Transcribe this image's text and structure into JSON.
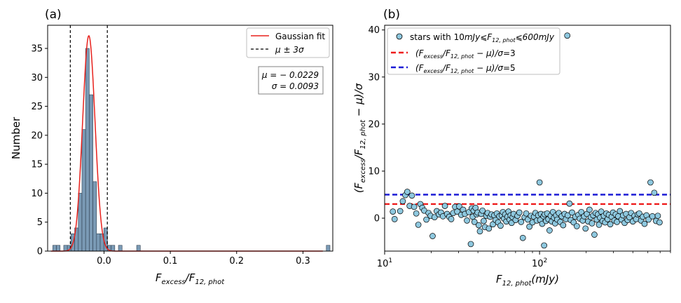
{
  "panel_a": {
    "letter": "(a)",
    "legend": {
      "fit": "Gaussian fit",
      "sigma_lines": "μ ± 3σ"
    },
    "stats": {
      "mu": "μ = − 0.0229",
      "sigma": "σ = 0.0093"
    },
    "colors": {
      "bars": "#7a9ab5",
      "fit": "#e8211c",
      "lines": "#000000"
    }
  },
  "panel_b": {
    "letter": "(b)",
    "legend": {
      "stars_prefix": "stars with 10",
      "stars_unit": "mJy",
      "stars_mid": "⩽F",
      "stars_sub": "12, phot",
      "stars_end": "⩽600",
      "line3": "=3",
      "line5": "=5"
    },
    "colors": {
      "points": "#8ec8df",
      "line3": "#ee1c1c",
      "line5": "#1b1bd6"
    }
  },
  "chart_data": [
    {
      "type": "bar",
      "title": "",
      "xlabel": "F_excess/F_12,phot",
      "ylabel": "Number",
      "xlim": [
        -0.085,
        0.345
      ],
      "ylim": [
        0,
        39
      ],
      "xticks": [
        "0.0",
        "0.1",
        "0.2",
        "0.3"
      ],
      "yticks": [
        "0",
        "5",
        "10",
        "15",
        "20",
        "25",
        "30",
        "35"
      ],
      "bin_width": 0.0055,
      "bins": [
        [
          -0.0745,
          1
        ],
        [
          -0.069,
          1
        ],
        [
          -0.058,
          1
        ],
        [
          -0.0525,
          1
        ],
        [
          -0.047,
          3
        ],
        [
          -0.0415,
          4
        ],
        [
          -0.036,
          10
        ],
        [
          -0.0305,
          21
        ],
        [
          -0.025,
          35
        ],
        [
          -0.0195,
          27
        ],
        [
          -0.014,
          12
        ],
        [
          -0.0085,
          3
        ],
        [
          -0.003,
          3
        ],
        [
          0.0025,
          4
        ],
        [
          0.008,
          1
        ],
        [
          0.0135,
          1
        ],
        [
          0.0245,
          1
        ],
        [
          0.052,
          1
        ],
        [
          0.338,
          1
        ]
      ],
      "gaussian_fit": {
        "mu": -0.0229,
        "sigma": 0.0093,
        "amplitude": 37.2
      },
      "vlines": [
        -0.0508,
        0.005
      ],
      "legend": [
        "Gaussian fit",
        "μ ± 3σ"
      ],
      "grid": false
    },
    {
      "type": "scatter",
      "title": "",
      "xlabel": "F_12,phot(mJy)",
      "ylabel": "(F_excess/F_12,phot − μ)/σ",
      "xscale": "log",
      "xlim": [
        10,
        700
      ],
      "ylim": [
        -7,
        41
      ],
      "xticks": [
        "10^1",
        "10^2"
      ],
      "yticks": [
        "0",
        "10",
        "20",
        "30",
        "40"
      ],
      "hlines": [
        3,
        5
      ],
      "legend": [
        "stars with 10mJy⩽F12,phot⩽600mJy",
        "(Fexcess/F12,phot − μ)/σ=3",
        "(Fexcess/F12,phot − μ)/σ=5"
      ],
      "grid": false,
      "points": [
        [
          11.3,
          1.4
        ],
        [
          11.6,
          -0.2
        ],
        [
          12.6,
          1.5
        ],
        [
          13.1,
          3.6
        ],
        [
          13.6,
          4.9
        ],
        [
          14.0,
          5.6
        ],
        [
          14.5,
          2.6
        ],
        [
          15.0,
          4.8
        ],
        [
          15.5,
          2.4
        ],
        [
          16.0,
          1.0
        ],
        [
          16.5,
          -1.4
        ],
        [
          17.0,
          3.0
        ],
        [
          17.5,
          2.2
        ],
        [
          18.0,
          1.6
        ],
        [
          18.6,
          -0.3
        ],
        [
          19.2,
          1.1
        ],
        [
          19.8,
          0.5
        ],
        [
          20.4,
          -3.8
        ],
        [
          21.0,
          0.2
        ],
        [
          21.7,
          1.5
        ],
        [
          22.4,
          0.8
        ],
        [
          23.1,
          1.2
        ],
        [
          23.8,
          0.4
        ],
        [
          24.5,
          2.6
        ],
        [
          25.3,
          0.9
        ],
        [
          26.1,
          0.3
        ],
        [
          26.9,
          -0.2
        ],
        [
          27.7,
          1.1
        ],
        [
          28.5,
          2.4
        ],
        [
          29.4,
          1.4
        ],
        [
          30.3,
          2.5
        ],
        [
          31.2,
          0.7
        ],
        [
          32.1,
          1.8
        ],
        [
          33.0,
          0.9
        ],
        [
          34.0,
          -0.5
        ],
        [
          35.0,
          1.3
        ],
        [
          36.0,
          -5.5
        ],
        [
          36.5,
          2.1
        ],
        [
          37.0,
          0.3
        ],
        [
          37.5,
          1.6
        ],
        [
          38.0,
          -0.8
        ],
        [
          38.6,
          2.2
        ],
        [
          39.2,
          0.8
        ],
        [
          39.8,
          1.2
        ],
        [
          40.5,
          -1.5
        ],
        [
          41.2,
          -2.8
        ],
        [
          42.0,
          0.9
        ],
        [
          42.8,
          1.6
        ],
        [
          43.6,
          -0.6
        ],
        [
          44.4,
          -1.9
        ],
        [
          45.3,
          0.5
        ],
        [
          46.2,
          1.1
        ],
        [
          47.1,
          -2.2
        ],
        [
          48.0,
          0.3
        ],
        [
          49.0,
          0.8
        ],
        [
          50.0,
          -1.3
        ],
        [
          51.0,
          0.6
        ],
        [
          52.0,
          -0.4
        ],
        [
          53.0,
          1.0
        ],
        [
          54.0,
          -0.9
        ],
        [
          55.0,
          0.4
        ],
        [
          56.0,
          -1.6
        ],
        [
          57.0,
          0.6
        ],
        [
          58.0,
          1.3
        ],
        [
          59.0,
          -0.1
        ],
        [
          60.0,
          0.8
        ],
        [
          61.0,
          -0.7
        ],
        [
          62.0,
          0.3
        ],
        [
          63.0,
          1.4
        ],
        [
          64.0,
          -0.3
        ],
        [
          65.0,
          0.6
        ],
        [
          66.0,
          -1.0
        ],
        [
          67.0,
          0.2
        ],
        [
          68.0,
          0.9
        ],
        [
          70.0,
          -0.4
        ],
        [
          72.0,
          0.5
        ],
        [
          74.0,
          1.2
        ],
        [
          76.0,
          -0.8
        ],
        [
          78.0,
          -4.2
        ],
        [
          80.0,
          0.2
        ],
        [
          82.0,
          1.0
        ],
        [
          84.0,
          -0.3
        ],
        [
          86.0,
          -1.8
        ],
        [
          88.0,
          0.5
        ],
        [
          90.0,
          -0.9
        ],
        [
          92.0,
          0.3
        ],
        [
          94.0,
          1.1
        ],
        [
          96.0,
          -0.5
        ],
        [
          98.0,
          0.6
        ],
        [
          100.0,
          7.6
        ],
        [
          101.0,
          -0.4
        ],
        [
          102.0,
          0.9
        ],
        [
          104.0,
          -1.2
        ],
        [
          106.0,
          0.4
        ],
        [
          107.0,
          -5.8
        ],
        [
          108.0,
          0.8
        ],
        [
          110.0,
          -0.6
        ],
        [
          112.0,
          1.0
        ],
        [
          114.0,
          -0.2
        ],
        [
          116.0,
          -2.6
        ],
        [
          118.0,
          0.5
        ],
        [
          120.0,
          -0.7
        ],
        [
          122.0,
          1.3
        ],
        [
          124.0,
          0.1
        ],
        [
          126.0,
          -1.1
        ],
        [
          128.0,
          0.6
        ],
        [
          130.0,
          -0.3
        ],
        [
          133.0,
          1.1
        ],
        [
          136.0,
          -0.8
        ],
        [
          139.0,
          0.4
        ],
        [
          142.0,
          -1.5
        ],
        [
          145.0,
          0.9
        ],
        [
          148.0,
          -0.2
        ],
        [
          151.0,
          38.8
        ],
        [
          152.0,
          0.6
        ],
        [
          156.0,
          3.1
        ],
        [
          159.0,
          -0.4
        ],
        [
          162.0,
          1.2
        ],
        [
          166.0,
          -0.9
        ],
        [
          170.0,
          0.3
        ],
        [
          174.0,
          -1.7
        ],
        [
          178.0,
          0.7
        ],
        [
          182.0,
          -0.1
        ],
        [
          186.0,
          1.3
        ],
        [
          190.0,
          -0.5
        ],
        [
          194.0,
          0.4
        ],
        [
          198.0,
          -2.2
        ],
        [
          202.0,
          0.9
        ],
        [
          206.0,
          -0.7
        ],
        [
          210.0,
          1.8
        ],
        [
          214.0,
          0.2
        ],
        [
          218.0,
          -1.1
        ],
        [
          222.0,
          0.6
        ],
        [
          226.0,
          -3.5
        ],
        [
          230.0,
          1.1
        ],
        [
          234.0,
          -0.3
        ],
        [
          238.0,
          0.8
        ],
        [
          242.0,
          -1.4
        ],
        [
          246.0,
          0.1
        ],
        [
          250.0,
          1.4
        ],
        [
          255.0,
          -0.6
        ],
        [
          260.0,
          0.5
        ],
        [
          265.0,
          -0.9
        ],
        [
          270.0,
          1.0
        ],
        [
          275.0,
          -0.2
        ],
        [
          280.0,
          0.7
        ],
        [
          286.0,
          -1.3
        ],
        [
          292.0,
          0.3
        ],
        [
          298.0,
          1.2
        ],
        [
          304.0,
          -0.5
        ],
        [
          310.0,
          0.8
        ],
        [
          316.0,
          -0.8
        ],
        [
          322.0,
          0.4
        ],
        [
          330.0,
          1.5
        ],
        [
          338.0,
          -0.3
        ],
        [
          346.0,
          0.6
        ],
        [
          354.0,
          -1.0
        ],
        [
          362.0,
          0.9
        ],
        [
          370.0,
          -0.4
        ],
        [
          380.0,
          0.2
        ],
        [
          390.0,
          1.1
        ],
        [
          400.0,
          -0.7
        ],
        [
          410.0,
          0.5
        ],
        [
          420.0,
          -0.2
        ],
        [
          430.0,
          0.8
        ],
        [
          440.0,
          1.0
        ],
        [
          452.0,
          -0.5
        ],
        [
          464.0,
          0.3
        ],
        [
          476.0,
          -1.2
        ],
        [
          490.0,
          0.6
        ],
        [
          505.0,
          -0.3
        ],
        [
          520.0,
          7.6
        ],
        [
          535.0,
          0.4
        ],
        [
          550.0,
          5.4
        ],
        [
          565.0,
          -0.6
        ],
        [
          580.0,
          0.5
        ],
        [
          595.0,
          -0.9
        ]
      ]
    }
  ]
}
